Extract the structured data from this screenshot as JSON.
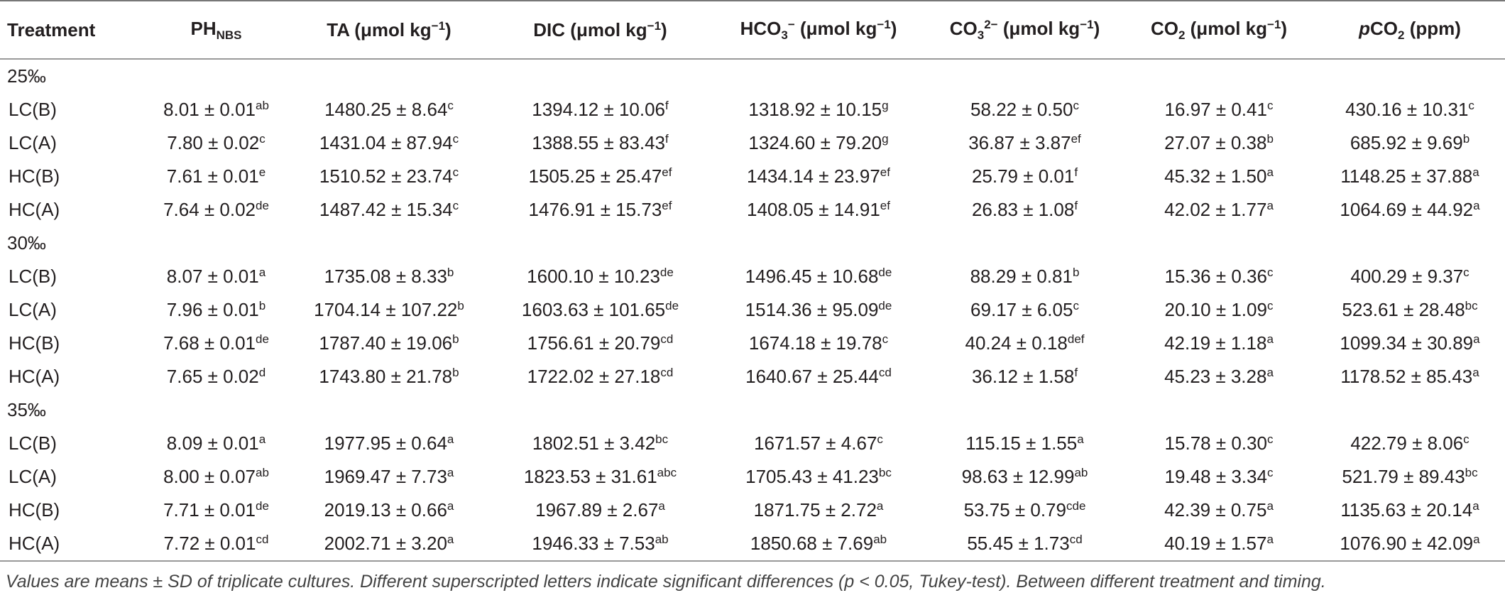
{
  "table": {
    "header": [
      [
        {
          "text": "Treatment"
        }
      ],
      [
        {
          "text": "PH"
        },
        {
          "text": "NBS",
          "format": "sub"
        }
      ],
      [
        {
          "text": "TA (μmol kg"
        },
        {
          "text": "−1",
          "format": "sup"
        },
        {
          "text": ")"
        }
      ],
      [
        {
          "text": "DIC (μmol kg"
        },
        {
          "text": "−1",
          "format": "sup"
        },
        {
          "text": ")"
        }
      ],
      [
        {
          "text": "HCO"
        },
        {
          "text": "3",
          "format": "sub"
        },
        {
          "text": "−",
          "format": "sup"
        },
        {
          "text": " (μmol kg"
        },
        {
          "text": "−1",
          "format": "sup"
        },
        {
          "text": ")"
        }
      ],
      [
        {
          "text": "CO"
        },
        {
          "text": "3",
          "format": "sub"
        },
        {
          "text": "2−",
          "format": "sup"
        },
        {
          "text": " (μmol kg"
        },
        {
          "text": "−1",
          "format": "sup"
        },
        {
          "text": ")"
        }
      ],
      [
        {
          "text": "CO"
        },
        {
          "text": "2",
          "format": "sub"
        },
        {
          "text": " (μmol kg"
        },
        {
          "text": "−1",
          "format": "sup"
        },
        {
          "text": ")"
        }
      ],
      [
        {
          "text": "p",
          "format": "italic"
        },
        {
          "text": "CO"
        },
        {
          "text": "2",
          "format": "sub"
        },
        {
          "text": " (ppm)"
        }
      ]
    ],
    "groups": [
      {
        "label": "25‰",
        "rows": [
          {
            "treatment": "LC(B)",
            "cells": [
              [
                "8.01 ± 0.01",
                "ab"
              ],
              [
                "1480.25 ± 8.64",
                "c"
              ],
              [
                "1394.12 ± 10.06",
                "f"
              ],
              [
                "1318.92 ± 10.15",
                "g"
              ],
              [
                "58.22 ± 0.50",
                "c"
              ],
              [
                "16.97 ± 0.41",
                "c"
              ],
              [
                "430.16 ± 10.31",
                "c"
              ]
            ]
          },
          {
            "treatment": "LC(A)",
            "cells": [
              [
                "7.80 ± 0.02",
                "c"
              ],
              [
                "1431.04 ± 87.94",
                "c"
              ],
              [
                "1388.55 ± 83.43",
                "f"
              ],
              [
                "1324.60 ± 79.20",
                "g"
              ],
              [
                "36.87 ± 3.87",
                "ef"
              ],
              [
                "27.07 ± 0.38",
                "b"
              ],
              [
                "685.92 ± 9.69",
                "b"
              ]
            ]
          },
          {
            "treatment": "HC(B)",
            "cells": [
              [
                "7.61 ± 0.01",
                "e"
              ],
              [
                "1510.52 ± 23.74",
                "c"
              ],
              [
                "1505.25 ± 25.47",
                "ef"
              ],
              [
                "1434.14 ± 23.97",
                "ef"
              ],
              [
                "25.79 ± 0.01",
                "f"
              ],
              [
                "45.32 ± 1.50",
                "a"
              ],
              [
                "1148.25 ± 37.88",
                "a"
              ]
            ]
          },
          {
            "treatment": "HC(A)",
            "cells": [
              [
                "7.64 ± 0.02",
                "de"
              ],
              [
                "1487.42 ± 15.34",
                "c"
              ],
              [
                "1476.91 ± 15.73",
                "ef"
              ],
              [
                "1408.05 ± 14.91",
                "ef"
              ],
              [
                "26.83 ± 1.08",
                "f"
              ],
              [
                "42.02 ± 1.77",
                "a"
              ],
              [
                "1064.69 ± 44.92",
                "a"
              ]
            ]
          }
        ]
      },
      {
        "label": "30‰",
        "rows": [
          {
            "treatment": "LC(B)",
            "cells": [
              [
                "8.07 ± 0.01",
                "a"
              ],
              [
                "1735.08 ± 8.33",
                "b"
              ],
              [
                "1600.10 ± 10.23",
                "de"
              ],
              [
                "1496.45 ± 10.68",
                "de"
              ],
              [
                "88.29 ± 0.81",
                "b"
              ],
              [
                "15.36 ± 0.36",
                "c"
              ],
              [
                "400.29 ± 9.37",
                "c"
              ]
            ]
          },
          {
            "treatment": "LC(A)",
            "cells": [
              [
                "7.96 ± 0.01",
                "b"
              ],
              [
                "1704.14 ± 107.22",
                "b"
              ],
              [
                "1603.63 ± 101.65",
                "de"
              ],
              [
                "1514.36 ± 95.09",
                "de"
              ],
              [
                "69.17 ± 6.05",
                "c"
              ],
              [
                "20.10 ± 1.09",
                "c"
              ],
              [
                "523.61 ± 28.48",
                "bc"
              ]
            ]
          },
          {
            "treatment": "HC(B)",
            "cells": [
              [
                "7.68 ± 0.01",
                "de"
              ],
              [
                "1787.40 ± 19.06",
                "b"
              ],
              [
                "1756.61 ± 20.79",
                "cd"
              ],
              [
                "1674.18 ± 19.78",
                "c"
              ],
              [
                "40.24 ± 0.18",
                "def"
              ],
              [
                "42.19 ± 1.18",
                "a"
              ],
              [
                "1099.34 ± 30.89",
                "a"
              ]
            ]
          },
          {
            "treatment": "HC(A)",
            "cells": [
              [
                "7.65 ± 0.02",
                "d"
              ],
              [
                "1743.80 ± 21.78",
                "b"
              ],
              [
                "1722.02 ± 27.18",
                "cd"
              ],
              [
                "1640.67 ± 25.44",
                "cd"
              ],
              [
                "36.12 ± 1.58",
                "f"
              ],
              [
                "45.23 ± 3.28",
                "a"
              ],
              [
                "1178.52 ± 85.43",
                "a"
              ]
            ]
          }
        ]
      },
      {
        "label": "35‰",
        "rows": [
          {
            "treatment": "LC(B)",
            "cells": [
              [
                "8.09 ± 0.01",
                "a"
              ],
              [
                "1977.95 ± 0.64",
                "a"
              ],
              [
                "1802.51 ± 3.42",
                "bc"
              ],
              [
                "1671.57 ± 4.67",
                "c"
              ],
              [
                "115.15 ± 1.55",
                "a"
              ],
              [
                "15.78 ± 0.30",
                "c"
              ],
              [
                "422.79 ± 8.06",
                "c"
              ]
            ]
          },
          {
            "treatment": "LC(A)",
            "cells": [
              [
                "8.00 ± 0.07",
                "ab"
              ],
              [
                "1969.47 ± 7.73",
                "a"
              ],
              [
                "1823.53 ± 31.61",
                "abc"
              ],
              [
                "1705.43 ± 41.23",
                "bc"
              ],
              [
                "98.63 ± 12.99",
                "ab"
              ],
              [
                "19.48 ± 3.34",
                "c"
              ],
              [
                "521.79 ± 89.43",
                "bc"
              ]
            ]
          },
          {
            "treatment": "HC(B)",
            "cells": [
              [
                "7.71 ± 0.01",
                "de"
              ],
              [
                "2019.13 ± 0.66",
                "a"
              ],
              [
                "1967.89 ± 2.67",
                "a"
              ],
              [
                "1871.75 ± 2.72",
                "a"
              ],
              [
                "53.75 ± 0.79",
                "cde"
              ],
              [
                "42.39 ± 0.75",
                "a"
              ],
              [
                "1135.63 ± 20.14",
                "a"
              ]
            ]
          },
          {
            "treatment": "HC(A)",
            "cells": [
              [
                "7.72 ± 0.01",
                "cd"
              ],
              [
                "2002.71 ± 3.20",
                "a"
              ],
              [
                "1946.33 ± 7.53",
                "ab"
              ],
              [
                "1850.68 ± 7.69",
                "ab"
              ],
              [
                "55.45 ± 1.73",
                "cd"
              ],
              [
                "40.19 ± 1.57",
                "a"
              ],
              [
                "1076.90 ± 42.09",
                "a"
              ]
            ]
          }
        ]
      }
    ]
  },
  "footnote": "Values are means ± SD of triplicate cultures. Different superscripted letters indicate significant differences (p < 0.05, Tukey-test). Between different treatment and timing."
}
